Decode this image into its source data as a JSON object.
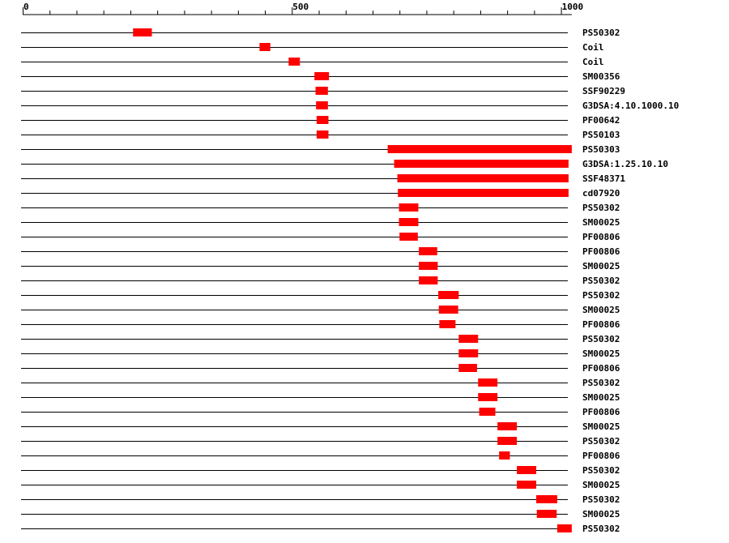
{
  "chart_data": {
    "type": "bar",
    "title": "",
    "xlabel": "",
    "ylabel": "",
    "xlim": [
      0,
      1020
    ],
    "axis_tick_labels": [
      "0",
      "500",
      "1000"
    ],
    "minor_tick_step": 50,
    "major_tick_values": [
      0,
      500,
      1000
    ],
    "grid": false,
    "bar_color": "#ff0000",
    "line_color": "#000000",
    "features": [
      {
        "label": "PS50302",
        "start": 205,
        "end": 240
      },
      {
        "label": "Coil",
        "start": 440,
        "end": 460
      },
      {
        "label": "Coil",
        "start": 494,
        "end": 515
      },
      {
        "label": "SM00356",
        "start": 542,
        "end": 569
      },
      {
        "label": "SSF90229",
        "start": 544,
        "end": 567
      },
      {
        "label": "G3DSA:4.10.1000.10",
        "start": 545,
        "end": 567
      },
      {
        "label": "PF00642",
        "start": 546,
        "end": 568
      },
      {
        "label": "PS50103",
        "start": 546,
        "end": 568
      },
      {
        "label": "PS50303",
        "start": 678,
        "end": 1020
      },
      {
        "label": "G3DSA:1.25.10.10",
        "start": 690,
        "end": 1014
      },
      {
        "label": "SSF48371",
        "start": 696,
        "end": 1014
      },
      {
        "label": "cd07920",
        "start": 697,
        "end": 1014
      },
      {
        "label": "PS50302",
        "start": 699,
        "end": 735
      },
      {
        "label": "SM00025",
        "start": 699,
        "end": 735
      },
      {
        "label": "PF00806",
        "start": 700,
        "end": 734
      },
      {
        "label": "PF00806",
        "start": 736,
        "end": 770
      },
      {
        "label": "SM00025",
        "start": 736,
        "end": 771
      },
      {
        "label": "PS50302",
        "start": 736,
        "end": 771
      },
      {
        "label": "PS50302",
        "start": 772,
        "end": 810
      },
      {
        "label": "SM00025",
        "start": 773,
        "end": 809
      },
      {
        "label": "PF00806",
        "start": 774,
        "end": 804
      },
      {
        "label": "PS50302",
        "start": 810,
        "end": 846
      },
      {
        "label": "SM00025",
        "start": 810,
        "end": 846
      },
      {
        "label": "PF00806",
        "start": 810,
        "end": 844
      },
      {
        "label": "PS50302",
        "start": 846,
        "end": 882
      },
      {
        "label": "SM00025",
        "start": 846,
        "end": 882
      },
      {
        "label": "PF00806",
        "start": 848,
        "end": 878
      },
      {
        "label": "SM00025",
        "start": 882,
        "end": 918
      },
      {
        "label": "PS50302",
        "start": 882,
        "end": 918
      },
      {
        "label": "PF00806",
        "start": 885,
        "end": 905
      },
      {
        "label": "PS50302",
        "start": 918,
        "end": 954
      },
      {
        "label": "SM00025",
        "start": 918,
        "end": 954
      },
      {
        "label": "PS50302",
        "start": 954,
        "end": 993
      },
      {
        "label": "SM00025",
        "start": 955,
        "end": 992
      },
      {
        "label": "PS50302",
        "start": 993,
        "end": 1020
      }
    ]
  }
}
